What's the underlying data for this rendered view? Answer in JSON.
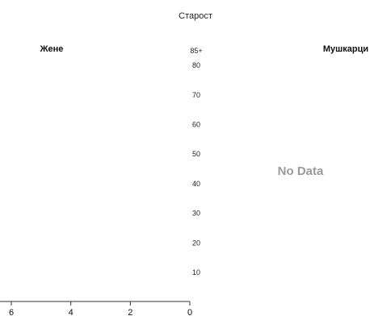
{
  "chart_data": {
    "type": "bar",
    "orientation": "horizontal",
    "title": "Старост",
    "left_label": "Жене",
    "right_label": "Мушкарци",
    "age_labels": [
      "85+",
      "80",
      "70",
      "60",
      "50",
      "40",
      "30",
      "20",
      "10"
    ],
    "age_values": [
      85,
      80,
      70,
      60,
      50,
      40,
      30,
      20,
      10
    ],
    "x_ticks": [
      "6",
      "4",
      "2",
      "0"
    ],
    "x_tick_values": [
      6,
      4,
      2,
      0
    ],
    "xlim": [
      6,
      0
    ],
    "series": [],
    "right_message": "No Data",
    "grid": false
  },
  "colors": {
    "axis": "#333333",
    "text": "#111111",
    "no_data": "#9a9a9a"
  }
}
